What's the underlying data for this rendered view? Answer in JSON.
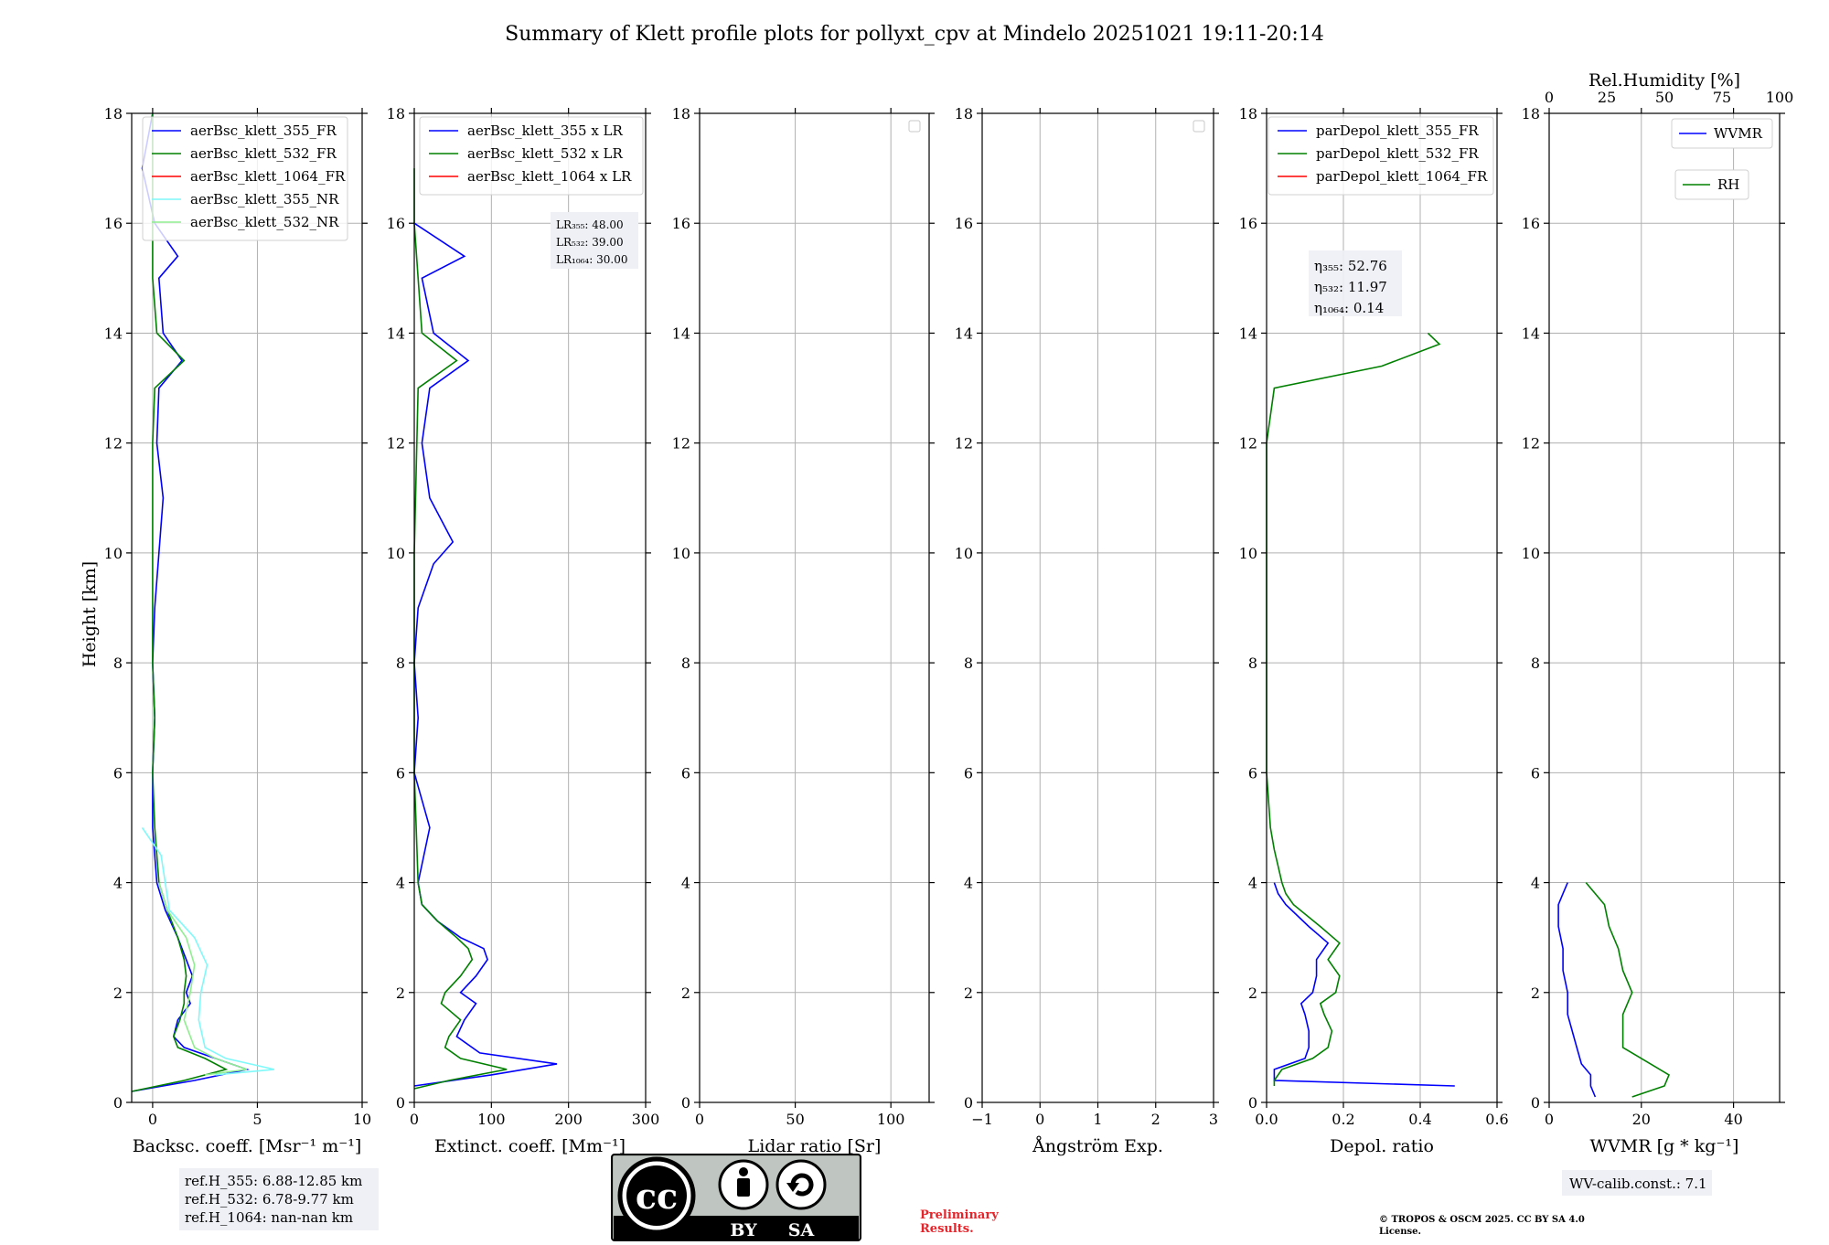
{
  "title": "Summary of Klett profile plots for pollyxt_cpv at Mindelo 20251021 19:11-20:14",
  "ylabel": "Height [km]",
  "colors": {
    "b355": "#0000ff",
    "b532": "#008000",
    "b1064": "#ff0000",
    "nr355": "#7ff9f9",
    "nr532": "#90ee90"
  },
  "panels": [
    {
      "xlabel": "Backsc. coeff. [Msr⁻¹ m⁻¹]",
      "xlim": [
        -1,
        10
      ],
      "xticks": [
        0,
        5,
        10
      ],
      "legend": [
        "aerBsc_klett_355_FR",
        "aerBsc_klett_532_FR",
        "aerBsc_klett_1064_FR",
        "aerBsc_klett_355_NR",
        "aerBsc_klett_532_NR"
      ]
    },
    {
      "xlabel": "Extinct. coeff. [Mm⁻¹]",
      "xlim": [
        0,
        300
      ],
      "xticks": [
        0,
        100,
        200,
        300
      ],
      "legend": [
        "aerBsc_klett_355 x LR",
        "aerBsc_klett_532 x LR",
        "aerBsc_klett_1064 x LR"
      ],
      "lr_box": [
        "LR₃₅₅: 48.00",
        "LR₅₃₂: 39.00",
        "LR₁₀₆₄: 30.00"
      ]
    },
    {
      "xlabel": "Lidar ratio [Sr]",
      "xlim": [
        0,
        120
      ],
      "xticks": [
        0,
        50,
        100
      ]
    },
    {
      "xlabel": "Ångström Exp.",
      "xlim": [
        -1,
        3
      ],
      "xticks": [
        -1,
        0,
        1,
        2,
        3
      ]
    },
    {
      "xlabel": "Depol. ratio",
      "xlim": [
        0,
        0.6
      ],
      "xticks": [
        0.0,
        0.2,
        0.4,
        0.6
      ],
      "xtick_labels": [
        "0.0",
        "0.2",
        "0.4",
        "0.6"
      ],
      "legend": [
        "parDepol_klett_355_FR",
        "parDepol_klett_532_FR",
        "parDepol_klett_1064_FR"
      ],
      "eta_box": [
        "η₃₅₅: 52.76",
        "η₅₃₂: 11.97",
        "η₁₀₆₄: 0.14"
      ]
    },
    {
      "xlabel": "WVMR [g * kg⁻¹]",
      "xlim": [
        0,
        50
      ],
      "xticks": [
        0,
        20,
        40
      ],
      "top_label": "Rel.Humidity [%]",
      "top_xlim": [
        0,
        100
      ],
      "top_xticks": [
        0,
        25,
        50,
        75,
        100
      ],
      "legend_wvmr": "WVMR",
      "legend_rh": "RH",
      "calib": "WV-calib.const.: 7.1"
    }
  ],
  "ylim": [
    0,
    18
  ],
  "yticks": [
    0,
    2,
    4,
    6,
    8,
    10,
    12,
    14,
    16,
    18
  ],
  "ref_heights": [
    "ref.H_355: 6.88-12.85 km",
    "ref.H_532: 6.78-9.77 km",
    "ref.H_1064: nan-nan km"
  ],
  "cc_badge": {
    "cc": "cc",
    "by": "BY",
    "sa": "SA"
  },
  "preliminary": "Preliminary Results.",
  "copyright": "© TROPOS & OSCM 2025. CC BY SA 4.0 License.",
  "chart_data": [
    {
      "type": "line",
      "title": "",
      "xlabel": "Backsc. coeff. [Msr⁻¹ m⁻¹]",
      "ylabel": "Height [km]",
      "xlim": [
        -1,
        10
      ],
      "ylim": [
        0,
        18
      ],
      "grid": true,
      "legend": "top-right",
      "series": [
        {
          "name": "aerBsc_klett_355_FR",
          "y": [
            0.2,
            0.4,
            0.6,
            0.8,
            1.0,
            1.2,
            1.5,
            1.8,
            2.0,
            2.3,
            2.6,
            3.0,
            3.5,
            4.0,
            5.0,
            6.0,
            7.0,
            8.0,
            9.0,
            10.0,
            11.0,
            12.0,
            13.0,
            13.5,
            14.0,
            15.0,
            15.4,
            16.0,
            17.0,
            18.0
          ],
          "x": [
            -1.0,
            2.0,
            4.5,
            3.0,
            1.5,
            1.0,
            1.2,
            1.8,
            1.6,
            1.9,
            1.6,
            1.2,
            0.6,
            0.2,
            0.0,
            0.0,
            0.1,
            0.0,
            0.1,
            0.3,
            0.5,
            0.2,
            0.3,
            1.4,
            0.5,
            0.3,
            1.2,
            0.1,
            -0.5,
            0.0
          ]
        },
        {
          "name": "aerBsc_klett_532_FR",
          "y": [
            0.2,
            0.4,
            0.6,
            0.8,
            1.0,
            1.2,
            1.5,
            1.8,
            2.0,
            2.3,
            2.6,
            3.0,
            3.5,
            4.0,
            5.0,
            6.0,
            7.0,
            8.0,
            9.0,
            10.0,
            11.0,
            12.0,
            13.0,
            13.5,
            14.0,
            15.0,
            16.0,
            17.0,
            18.0
          ],
          "x": [
            -1.0,
            1.5,
            3.5,
            2.5,
            1.2,
            1.0,
            1.3,
            1.5,
            1.5,
            1.6,
            1.5,
            1.2,
            0.7,
            0.3,
            0.1,
            0.0,
            0.1,
            0.0,
            0.0,
            0.0,
            0.0,
            0.0,
            0.1,
            1.5,
            0.2,
            0.0,
            0.0,
            0.0,
            0.0
          ]
        },
        {
          "name": "aerBsc_klett_355_NR",
          "y": [
            0.5,
            0.6,
            0.8,
            1.0,
            1.5,
            2.0,
            2.5,
            3.0,
            3.5,
            4.0,
            4.5,
            5.0
          ],
          "x": [
            3.0,
            5.8,
            3.5,
            2.5,
            2.2,
            2.3,
            2.6,
            2.0,
            0.8,
            0.6,
            0.4,
            -0.5
          ]
        },
        {
          "name": "aerBsc_klett_532_NR",
          "y": [
            0.5,
            0.6,
            0.8,
            1.0,
            1.5,
            2.0,
            2.5,
            3.0,
            3.5,
            4.0
          ],
          "x": [
            2.5,
            4.5,
            3.0,
            2.0,
            1.5,
            1.8,
            2.0,
            1.6,
            0.7,
            0.3
          ]
        }
      ]
    },
    {
      "type": "line",
      "title": "",
      "xlabel": "Extinct. coeff. [Mm⁻¹]",
      "ylabel": "Height [km]",
      "xlim": [
        0,
        300
      ],
      "ylim": [
        0,
        18
      ],
      "grid": true,
      "legend": "top-right",
      "series": [
        {
          "name": "aerBsc_klett_355 x LR",
          "y": [
            0.3,
            0.5,
            0.7,
            0.9,
            1.2,
            1.5,
            1.8,
            2.0,
            2.3,
            2.6,
            2.8,
            3.0,
            3.3,
            3.6,
            4.0,
            5.0,
            6.0,
            7.0,
            8.0,
            9.0,
            9.8,
            10.2,
            11.0,
            12.0,
            13.0,
            13.5,
            14.0,
            15.0,
            15.4,
            16.0
          ],
          "x": [
            0,
            100,
            185,
            85,
            55,
            65,
            80,
            60,
            80,
            95,
            90,
            60,
            30,
            10,
            5,
            20,
            0,
            5,
            0,
            5,
            25,
            50,
            20,
            10,
            20,
            70,
            25,
            10,
            65,
            0
          ],
          "xy_note": ""
        },
        {
          "name": "aerBsc_klett_532 x LR",
          "y": [
            0.25,
            0.4,
            0.6,
            0.8,
            1.0,
            1.2,
            1.5,
            1.8,
            2.0,
            2.3,
            2.6,
            2.8,
            3.0,
            3.3,
            3.6,
            4.0,
            6.0,
            10.0,
            13.0,
            13.5,
            14.0,
            16.0,
            17.0
          ],
          "x": [
            0,
            45,
            120,
            60,
            40,
            45,
            60,
            35,
            40,
            60,
            75,
            70,
            55,
            30,
            10,
            5,
            0,
            0,
            5,
            55,
            10,
            0,
            0
          ]
        }
      ]
    },
    {
      "type": "line",
      "title": "",
      "xlabel": "Lidar ratio [Sr]",
      "xlim": [
        0,
        120
      ],
      "ylim": [
        0,
        18
      ],
      "grid": true,
      "series": []
    },
    {
      "type": "line",
      "title": "",
      "xlabel": "Ångström Exp.",
      "xlim": [
        -1,
        3
      ],
      "ylim": [
        0,
        18
      ],
      "grid": true,
      "series": []
    },
    {
      "type": "line",
      "title": "",
      "xlabel": "Depol. ratio",
      "xlim": [
        0,
        0.6
      ],
      "ylim": [
        0,
        18
      ],
      "grid": true,
      "legend": "top-right",
      "series": [
        {
          "name": "parDepol_klett_355_FR",
          "y": [
            0.3,
            0.4,
            0.6,
            0.8,
            1.0,
            1.3,
            1.6,
            1.8,
            2.0,
            2.3,
            2.6,
            2.9,
            3.2,
            3.6,
            3.8,
            4.0
          ],
          "x": [
            0.49,
            0.02,
            0.02,
            0.1,
            0.11,
            0.11,
            0.1,
            0.09,
            0.12,
            0.13,
            0.13,
            0.16,
            0.11,
            0.05,
            0.03,
            0.02
          ]
        },
        {
          "name": "parDepol_klett_532_FR",
          "y": [
            0.3,
            0.4,
            0.6,
            0.8,
            1.0,
            1.3,
            1.6,
            1.8,
            2.0,
            2.3,
            2.6,
            2.9,
            3.2,
            3.6,
            3.8,
            4.0,
            4.3,
            4.6,
            5.0,
            6.0,
            8.0,
            10.0,
            12.0,
            13.0,
            13.4,
            13.8,
            14.0
          ],
          "x": [
            0.02,
            0.02,
            0.04,
            0.12,
            0.16,
            0.17,
            0.15,
            0.14,
            0.18,
            0.19,
            0.16,
            0.19,
            0.14,
            0.07,
            0.05,
            0.04,
            0.03,
            0.02,
            0.01,
            0.0,
            0.0,
            0.0,
            0.0,
            0.02,
            0.3,
            0.45,
            0.42
          ]
        }
      ]
    },
    {
      "type": "line",
      "title": "",
      "xlabel": "WVMR [g * kg⁻¹]",
      "xlim": [
        0,
        50
      ],
      "ylim": [
        0,
        18
      ],
      "grid": true,
      "legend": "top-right",
      "series": [
        {
          "name": "WVMR",
          "y": [
            0.1,
            0.3,
            0.5,
            0.7,
            1.0,
            1.3,
            1.6,
            2.0,
            2.4,
            2.8,
            3.2,
            3.6,
            3.8,
            4.0
          ],
          "x": [
            10,
            9,
            9,
            7,
            6,
            5,
            4,
            4,
            3,
            3,
            2,
            2,
            3,
            4
          ]
        },
        {
          "name": "RH",
          "y": [
            0.1,
            0.3,
            0.5,
            0.7,
            1.0,
            1.3,
            1.6,
            2.0,
            2.4,
            2.8,
            3.2,
            3.6,
            3.8,
            4.0
          ],
          "x": [
            18,
            25,
            26,
            22,
            16,
            16,
            16,
            18,
            16,
            15,
            13,
            12,
            10,
            8
          ],
          "x_units": "same axis"
        }
      ]
    }
  ]
}
